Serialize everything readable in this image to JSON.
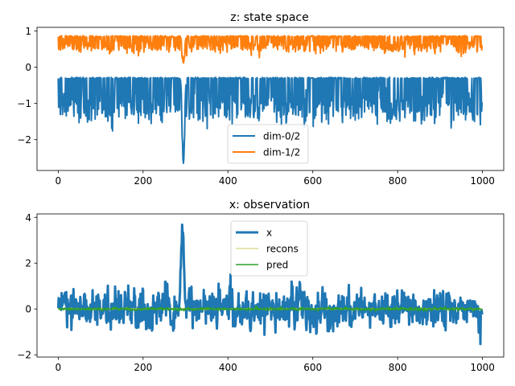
{
  "chart_data": [
    {
      "type": "line",
      "title": "z: state space",
      "xlabel": "",
      "ylabel": "",
      "xlim": [
        -50,
        1050
      ],
      "ylim": [
        -2.85,
        1.1
      ],
      "xticks": [
        0,
        200,
        400,
        600,
        800,
        1000
      ],
      "yticks": [
        -2,
        -1,
        0,
        1
      ],
      "xtick_labels": [
        "0",
        "200",
        "400",
        "600",
        "800",
        "1000"
      ],
      "ytick_labels": [
        "−2",
        "−1",
        "0",
        "1"
      ],
      "legend": {
        "placement": "bottom-center"
      },
      "series": [
        {
          "name": "dim-0/2",
          "color": "#1f77b4",
          "linewidth": 2.0,
          "n": 1000,
          "baseline": -0.3,
          "dip_mean": -0.8,
          "noise": 0.35,
          "event": {
            "x": 295,
            "value": -2.65
          },
          "mid_value": -1.0
        },
        {
          "name": "dim-1/2",
          "color": "#ff7f0e",
          "linewidth": 2.0,
          "n": 1000,
          "baseline": 0.85,
          "dip_mean": 0.68,
          "noise": 0.18,
          "event": {
            "x": 295,
            "value": 0.12
          },
          "mid_value": 0.75
        }
      ]
    },
    {
      "type": "line",
      "title": "x: observation",
      "xlabel": "",
      "ylabel": "",
      "xlim": [
        -50,
        1050
      ],
      "ylim": [
        -2.1,
        4.15
      ],
      "xticks": [
        0,
        200,
        400,
        600,
        800,
        1000
      ],
      "yticks": [
        -2,
        0,
        2,
        4
      ],
      "xtick_labels": [
        "0",
        "200",
        "400",
        "600",
        "800",
        "1000"
      ],
      "ytick_labels": [
        "−2",
        "0",
        "2",
        "4"
      ],
      "legend": {
        "placement": "top-center"
      },
      "series": [
        {
          "name": "x",
          "color": "#1f77b4",
          "linewidth": 3.0,
          "n": 1000,
          "mean": 0.0,
          "noise": 0.6,
          "range": [
            -1.8,
            1.9
          ],
          "event": {
            "x": 293,
            "value": 3.9
          }
        },
        {
          "name": "recons",
          "color": "#bcbd22",
          "linewidth": 0.8,
          "n": 1000,
          "mean": 0.0,
          "noise": 0.03
        },
        {
          "name": "pred",
          "color": "#2ca02c",
          "linewidth": 1.5,
          "n": 1000,
          "mean": 0.0,
          "noise": 0.05
        }
      ]
    }
  ]
}
